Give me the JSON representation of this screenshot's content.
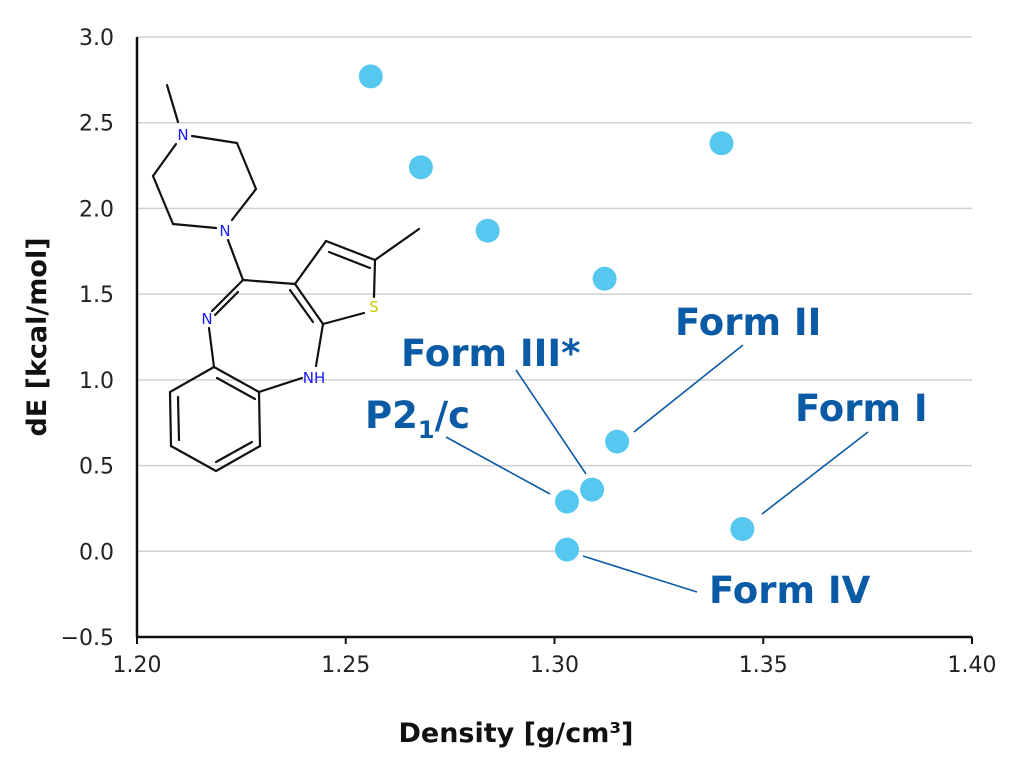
{
  "chart_data": {
    "type": "scatter",
    "title": "",
    "xlabel": "Density [g/cm³]",
    "ylabel": "dE [kcal/mol]",
    "xlim": [
      1.2,
      1.4
    ],
    "ylim": [
      -0.5,
      3.0
    ],
    "xticks": [
      "1.20",
      "1.25",
      "1.30",
      "1.35",
      "1.40"
    ],
    "yticks": [
      "3.0",
      "2.5",
      "2.0",
      "1.5",
      "1.0",
      "0.5",
      "0.0",
      "−0.5"
    ],
    "grid": "horizontal",
    "marker_color": "#56c8ef",
    "annotation_color": "#0b5aa6",
    "points": [
      {
        "x": 1.256,
        "y": 2.77
      },
      {
        "x": 1.268,
        "y": 2.24
      },
      {
        "x": 1.284,
        "y": 1.87
      },
      {
        "x": 1.312,
        "y": 1.59
      },
      {
        "x": 1.34,
        "y": 2.38
      },
      {
        "x": 1.315,
        "y": 0.64
      },
      {
        "x": 1.309,
        "y": 0.36
      },
      {
        "x": 1.303,
        "y": 0.29
      },
      {
        "x": 1.303,
        "y": 0.01
      },
      {
        "x": 1.345,
        "y": 0.13
      }
    ],
    "annotations": [
      {
        "text": "Form II",
        "point_index": 5
      },
      {
        "text": "Form III*",
        "point_index": 6
      },
      {
        "text": "P2",
        "subscript": "1",
        "suffix": "/c",
        "point_index": 7
      },
      {
        "text": "Form IV",
        "point_index": 8
      },
      {
        "text": "Form I",
        "point_index": 9
      }
    ],
    "inset_structure": {
      "atom_labels": [
        "N",
        "N",
        "N",
        "NH",
        "S"
      ],
      "atom_colors": {
        "N": "#1a1aff",
        "S": "#c8c800"
      }
    }
  }
}
